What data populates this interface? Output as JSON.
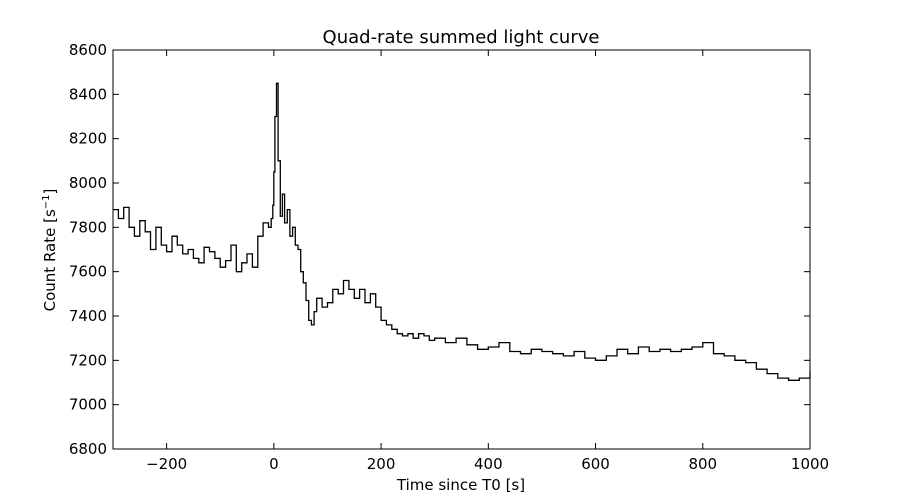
{
  "chart_data": {
    "type": "line",
    "step": true,
    "title": "Quad-rate summed light curve",
    "xlabel": "Time since T0 [s]",
    "ylabel_main": "Count Rate [s",
    "ylabel_sup": "−1",
    "ylabel_end": "]",
    "xlim": [
      -300,
      1000
    ],
    "ylim": [
      6800,
      8600
    ],
    "xticks": [
      -200,
      0,
      200,
      400,
      600,
      800,
      1000
    ],
    "xtick_labels": [
      "−200",
      "0",
      "200",
      "400",
      "600",
      "800",
      "1000"
    ],
    "yticks": [
      6800,
      7000,
      7200,
      7400,
      7600,
      7800,
      8000,
      8200,
      8400,
      8600
    ],
    "ytick_labels": [
      "6800",
      "7000",
      "7200",
      "7400",
      "7600",
      "7800",
      "8000",
      "8200",
      "8400",
      "8600"
    ],
    "grid": false,
    "series_color": "#000000",
    "series": [
      {
        "x": [
          -300,
          -290,
          -280,
          -270,
          -260,
          -250,
          -240,
          -230,
          -220,
          -210,
          -200,
          -190,
          -180,
          -170,
          -160,
          -150,
          -140,
          -130,
          -120,
          -110,
          -100,
          -90,
          -80,
          -70,
          -60,
          -50,
          -40,
          -30,
          -20,
          -10,
          -5,
          -2,
          0,
          2,
          5,
          8,
          12,
          16,
          20,
          25,
          30,
          35,
          40,
          45,
          50,
          55,
          60,
          65,
          70,
          75,
          80,
          90,
          100,
          110,
          120,
          130,
          140,
          150,
          160,
          170,
          180,
          190,
          200,
          210,
          220,
          230,
          240,
          250,
          260,
          270,
          280,
          290,
          300,
          320,
          340,
          360,
          380,
          400,
          420,
          440,
          460,
          480,
          500,
          520,
          540,
          560,
          580,
          600,
          620,
          640,
          660,
          680,
          700,
          720,
          740,
          760,
          780,
          800,
          820,
          840,
          860,
          880,
          900,
          920,
          940,
          960,
          980,
          1000
        ],
        "values": [
          7880,
          7840,
          7890,
          7800,
          7760,
          7830,
          7780,
          7700,
          7800,
          7720,
          7690,
          7760,
          7720,
          7680,
          7700,
          7660,
          7640,
          7710,
          7690,
          7660,
          7620,
          7650,
          7720,
          7600,
          7640,
          7680,
          7620,
          7760,
          7820,
          7800,
          7840,
          7900,
          8050,
          8300,
          8450,
          8100,
          7850,
          7950,
          7820,
          7880,
          7760,
          7800,
          7720,
          7700,
          7600,
          7550,
          7470,
          7380,
          7360,
          7420,
          7480,
          7440,
          7460,
          7520,
          7500,
          7560,
          7520,
          7480,
          7520,
          7460,
          7500,
          7440,
          7380,
          7360,
          7340,
          7320,
          7310,
          7320,
          7300,
          7320,
          7310,
          7290,
          7300,
          7280,
          7300,
          7270,
          7250,
          7260,
          7280,
          7240,
          7230,
          7250,
          7240,
          7230,
          7220,
          7240,
          7210,
          7200,
          7220,
          7250,
          7230,
          7260,
          7240,
          7250,
          7240,
          7250,
          7260,
          7280,
          7230,
          7220,
          7200,
          7190,
          7160,
          7140,
          7120,
          7110,
          7120,
          7150
        ]
      }
    ]
  }
}
